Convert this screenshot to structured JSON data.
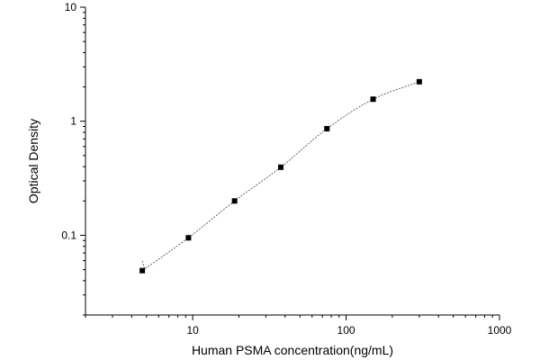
{
  "chart_data": {
    "type": "scatter",
    "xlabel": "Human PSMA concentration(ng/mL)",
    "ylabel": "Optical Density",
    "x_scale": "log",
    "y_scale": "log",
    "xlim": [
      2,
      1000
    ],
    "ylim": [
      0.02,
      10
    ],
    "x_tick_labels": [
      "10",
      "100",
      "1000"
    ],
    "y_tick_labels": [
      "0.1",
      "1",
      "10"
    ],
    "grid": false,
    "x": [
      4.69,
      9.38,
      18.75,
      37.5,
      75,
      150,
      300
    ],
    "y": [
      0.049,
      0.095,
      0.2,
      0.395,
      0.86,
      1.56,
      2.22
    ],
    "fit_curve": "smooth fit line through points"
  }
}
